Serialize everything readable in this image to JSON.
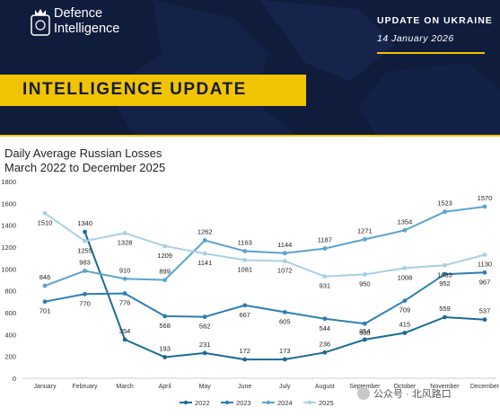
{
  "header": {
    "brand_line1": "Defence",
    "brand_line2": "Intelligence",
    "update_label": "UPDATE ON UKRAINE",
    "update_date": "14 January 2026",
    "banner": "INTELLIGENCE UPDATE"
  },
  "colors": {
    "navy": "#101c3c",
    "gold": "#f2c300",
    "series_2022": "#1b6b93",
    "series_2023": "#2c7fb0",
    "series_2024": "#5aa5cc",
    "series_2025": "#a9d0e4"
  },
  "watermark": "公众号 · 北风路口",
  "chart_data": {
    "type": "line",
    "title": "Daily Average Russian Losses",
    "subtitle": "March 2022 to December 2025",
    "xlabel": "",
    "ylabel": "",
    "ylim": [
      0,
      1800
    ],
    "yticks": [
      0,
      200,
      400,
      600,
      800,
      1000,
      1200,
      1400,
      1600,
      1800
    ],
    "grid": false,
    "legend_position": "bottom",
    "categories": [
      "January",
      "February",
      "March",
      "April",
      "May",
      "June",
      "July",
      "August",
      "September",
      "October",
      "November",
      "December"
    ],
    "series": [
      {
        "name": "2022",
        "color": "#1b6b93",
        "values": [
          null,
          1340,
          354,
          193,
          231,
          172,
          173,
          236,
          354,
          415,
          559,
          537
        ]
      },
      {
        "name": "2023",
        "color": "#2c7fb0",
        "values": [
          701,
          770,
          776,
          568,
          562,
          667,
          605,
          544,
          500,
          709,
          952,
          967
        ]
      },
      {
        "name": "2024",
        "color": "#5aa5cc",
        "values": [
          846,
          983,
          910,
          899,
          1262,
          1163,
          1144,
          1187,
          1271,
          1354,
          1523,
          1570
        ]
      },
      {
        "name": "2025",
        "color": "#a9d0e4",
        "values": [
          1510,
          1255,
          1328,
          1209,
          1141,
          1081,
          1072,
          931,
          950,
          1008,
          1033,
          1130
        ]
      }
    ]
  }
}
